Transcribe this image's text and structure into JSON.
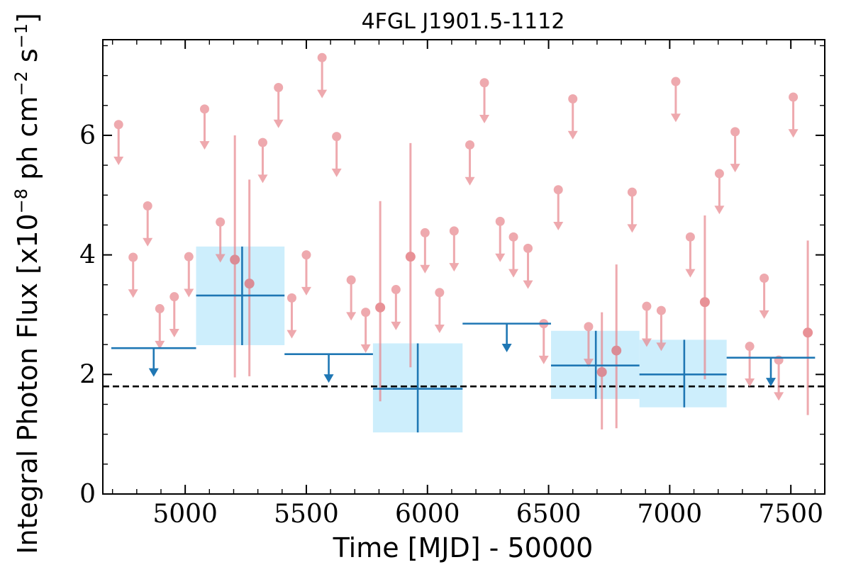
{
  "chart_data": {
    "type": "scatter",
    "title": "4FGL J1901.5-1112",
    "xlabel": "Time [MJD] - 50000",
    "ylabel": "Integral Photon Flux [x10",
    "ylabel_exp1": "−8",
    "ylabel_mid": " ph cm",
    "ylabel_exp2": "−2",
    "ylabel_mid2": " s",
    "ylabel_exp3": "−1",
    "ylabel_end": "]",
    "xlim": [
      4660,
      7640
    ],
    "ylim": [
      0,
      7.6
    ],
    "x_ticks": [
      5000,
      5500,
      6000,
      6500,
      7000,
      7500
    ],
    "y_ticks": [
      0,
      2,
      4,
      6
    ],
    "reference_line": {
      "value": 1.8,
      "style": "dashed",
      "color": "#000000"
    },
    "colors": {
      "short_bins": "#e8888f",
      "long_bins": "#1f77b4",
      "band_fill": "#cdeefc"
    },
    "series": [
      {
        "kind": "short-upper-limits",
        "points": [
          {
            "x": 4725,
            "y": 6.18
          },
          {
            "x": 4785,
            "y": 3.96
          },
          {
            "x": 4845,
            "y": 4.82
          },
          {
            "x": 4895,
            "y": 3.1
          },
          {
            "x": 4955,
            "y": 3.3
          },
          {
            "x": 5015,
            "y": 3.97
          },
          {
            "x": 5080,
            "y": 6.44
          },
          {
            "x": 5145,
            "y": 4.55
          },
          {
            "x": 5320,
            "y": 5.88
          },
          {
            "x": 5385,
            "y": 6.8
          },
          {
            "x": 5440,
            "y": 3.28
          },
          {
            "x": 5500,
            "y": 4.0
          },
          {
            "x": 5565,
            "y": 7.3
          },
          {
            "x": 5625,
            "y": 5.98
          },
          {
            "x": 5685,
            "y": 3.58
          },
          {
            "x": 5745,
            "y": 3.04
          },
          {
            "x": 5870,
            "y": 3.42
          },
          {
            "x": 5990,
            "y": 4.37
          },
          {
            "x": 6050,
            "y": 3.37
          },
          {
            "x": 6110,
            "y": 4.4
          },
          {
            "x": 6175,
            "y": 5.84
          },
          {
            "x": 6235,
            "y": 6.88
          },
          {
            "x": 6300,
            "y": 4.56
          },
          {
            "x": 6355,
            "y": 4.3
          },
          {
            "x": 6415,
            "y": 4.11
          },
          {
            "x": 6480,
            "y": 2.85
          },
          {
            "x": 6540,
            "y": 5.09
          },
          {
            "x": 6600,
            "y": 6.61
          },
          {
            "x": 6665,
            "y": 2.8
          },
          {
            "x": 6845,
            "y": 5.05
          },
          {
            "x": 6905,
            "y": 3.14
          },
          {
            "x": 6965,
            "y": 3.07
          },
          {
            "x": 7025,
            "y": 6.9
          },
          {
            "x": 7085,
            "y": 4.3
          },
          {
            "x": 7205,
            "y": 5.36
          },
          {
            "x": 7270,
            "y": 6.06
          },
          {
            "x": 7330,
            "y": 2.47
          },
          {
            "x": 7390,
            "y": 3.61
          },
          {
            "x": 7450,
            "y": 2.24
          },
          {
            "x": 7510,
            "y": 6.64
          }
        ]
      },
      {
        "kind": "short-detections",
        "points": [
          {
            "x": 5205,
            "y": 3.92,
            "ylo": 1.95,
            "yhi": 6.0
          },
          {
            "x": 5265,
            "y": 3.52,
            "ylo": 1.97,
            "yhi": 5.26
          },
          {
            "x": 5805,
            "y": 3.12,
            "ylo": 1.55,
            "yhi": 4.9
          },
          {
            "x": 5930,
            "y": 3.97,
            "ylo": 2.12,
            "yhi": 5.87
          },
          {
            "x": 6720,
            "y": 2.04,
            "ylo": 1.08,
            "yhi": 3.04
          },
          {
            "x": 6780,
            "y": 2.4,
            "ylo": 1.1,
            "yhi": 3.84
          },
          {
            "x": 7145,
            "y": 3.21,
            "ylo": 1.92,
            "yhi": 4.66
          },
          {
            "x": 7570,
            "y": 2.7,
            "ylo": 1.32,
            "yhi": 4.24
          }
        ]
      },
      {
        "kind": "long-upper-limits",
        "points": [
          {
            "x0": 4695,
            "x1": 5045,
            "y": 2.44
          },
          {
            "x0": 5410,
            "x1": 5775,
            "y": 2.34
          },
          {
            "x0": 6145,
            "x1": 6510,
            "y": 2.85
          },
          {
            "x0": 7235,
            "x1": 7600,
            "y": 2.28
          }
        ]
      },
      {
        "kind": "long-detections",
        "points": [
          {
            "x0": 5045,
            "x1": 5410,
            "xc": 5235,
            "y": 3.32,
            "ylo": 2.49,
            "yhi": 4.14
          },
          {
            "x0": 5775,
            "x1": 6145,
            "xc": 5960,
            "y": 1.76,
            "ylo": 1.03,
            "yhi": 2.52
          },
          {
            "x0": 6510,
            "x1": 6875,
            "xc": 6695,
            "y": 2.15,
            "ylo": 1.59,
            "yhi": 2.73
          },
          {
            "x0": 6875,
            "x1": 7235,
            "xc": 7060,
            "y": 2.0,
            "ylo": 1.45,
            "yhi": 2.58
          }
        ]
      }
    ]
  }
}
